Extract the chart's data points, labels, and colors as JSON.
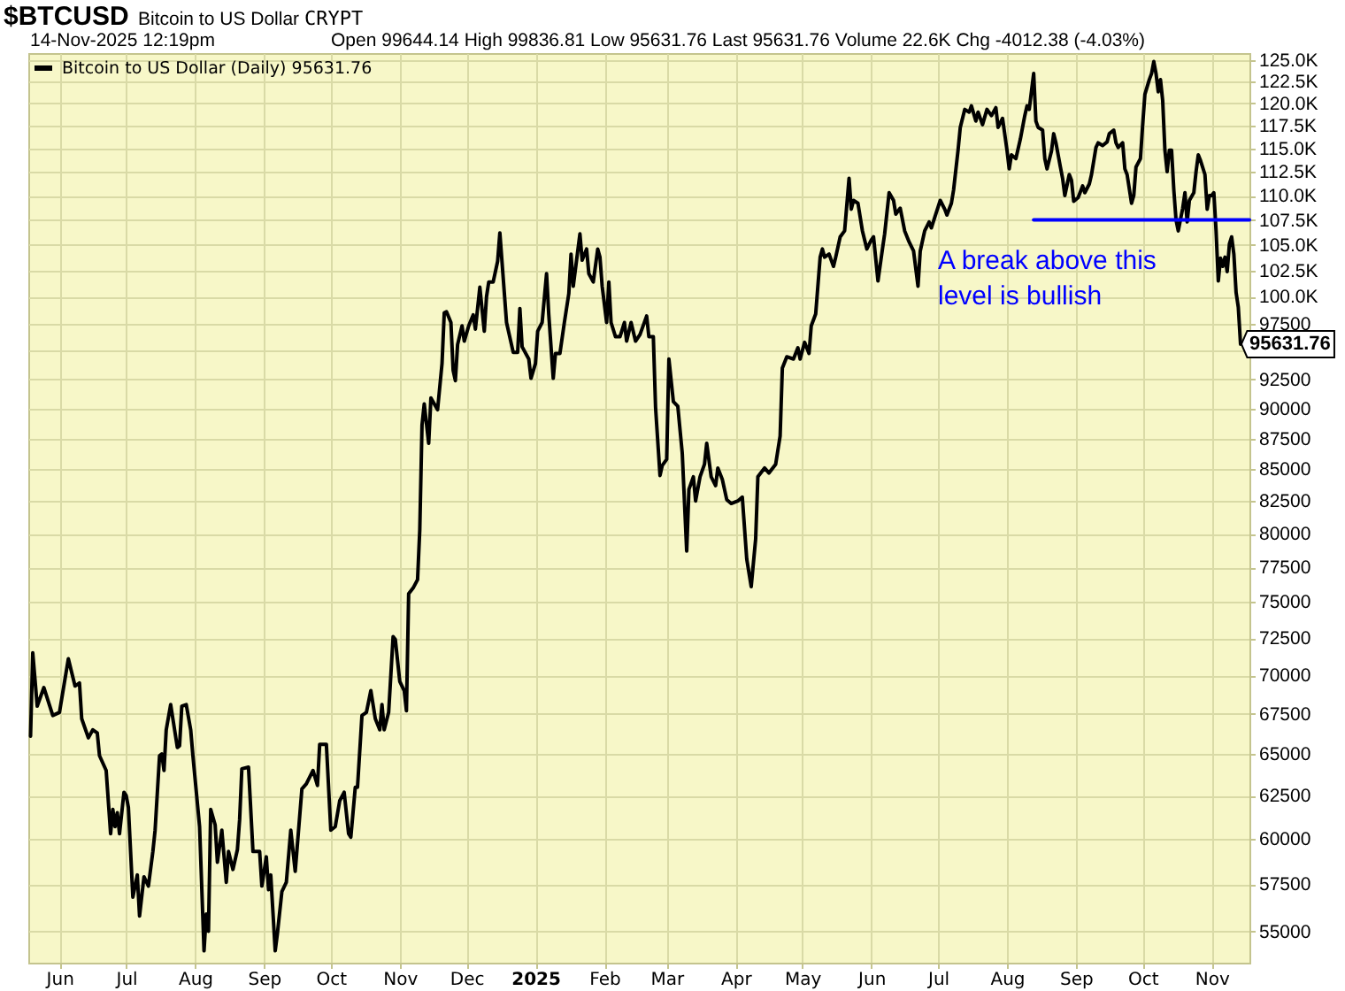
{
  "chart_data": {
    "type": "line",
    "title": "$BTCUSD",
    "subtitle": "Bitcoin to US Dollar",
    "annotations": [
      "CRYPT",
      "14-Nov-2025 12:19pm",
      "Open 99644.14 High 99836.81 Low 95631.76 Last 95631.76 Volume 22.6K Chg -4012.38 (-4.03%)",
      "A break above this level is bullish",
      {
        "text": "95631.76",
        "x": "2025-11-14",
        "y": 95631.76
      }
    ],
    "series": [
      {
        "name": "Bitcoin to US Dollar (Daily) 95631.76",
        "color": "#000000",
        "x": [
          "2024-05-19",
          "2024-05-20",
          "2024-05-22",
          "2024-05-25",
          "2024-05-29",
          "2024-06-01",
          "2024-06-05",
          "2024-06-08",
          "2024-06-10",
          "2024-06-11",
          "2024-06-14",
          "2024-06-16",
          "2024-06-18",
          "2024-06-19",
          "2024-06-22",
          "2024-06-24",
          "2024-06-25",
          "2024-06-26",
          "2024-06-27",
          "2024-06-28",
          "2024-06-30",
          "2024-07-01",
          "2024-07-02",
          "2024-07-04",
          "2024-07-06",
          "2024-07-07",
          "2024-07-09",
          "2024-07-11",
          "2024-07-13",
          "2024-07-14",
          "2024-07-16",
          "2024-07-17",
          "2024-07-18",
          "2024-07-19",
          "2024-07-21",
          "2024-07-24",
          "2024-07-25",
          "2024-07-26",
          "2024-07-28",
          "2024-07-30",
          "2024-07-31",
          "2024-08-03",
          "2024-08-05",
          "2024-08-06",
          "2024-08-07",
          "2024-08-08",
          "2024-08-10",
          "2024-08-11",
          "2024-08-13",
          "2024-08-15",
          "2024-08-16",
          "2024-08-18",
          "2024-08-20",
          "2024-08-21",
          "2024-08-22",
          "2024-08-25",
          "2024-08-27",
          "2024-08-30",
          "2024-08-31",
          "2024-09-02",
          "2024-09-03",
          "2024-09-04",
          "2024-09-06",
          "2024-09-07",
          "2024-09-09",
          "2024-09-11",
          "2024-09-13",
          "2024-09-15",
          "2024-09-18",
          "2024-09-20",
          "2024-09-23",
          "2024-09-25",
          "2024-09-26",
          "2024-09-29",
          "2024-10-01",
          "2024-10-03",
          "2024-10-05",
          "2024-10-07",
          "2024-10-09",
          "2024-10-10",
          "2024-10-12",
          "2024-10-13",
          "2024-10-15",
          "2024-10-17",
          "2024-10-19",
          "2024-10-21",
          "2024-10-23",
          "2024-10-24",
          "2024-10-25",
          "2024-10-27",
          "2024-10-29",
          "2024-10-30",
          "2024-11-01",
          "2024-11-03",
          "2024-11-04",
          "2024-11-05",
          "2024-11-07",
          "2024-11-09",
          "2024-11-10",
          "2024-11-11",
          "2024-11-12",
          "2024-11-14",
          "2024-11-15",
          "2024-11-18",
          "2024-11-20",
          "2024-11-21",
          "2024-11-22",
          "2024-11-24",
          "2024-11-25",
          "2024-11-26",
          "2024-11-27",
          "2024-11-29",
          "2024-11-30",
          "2024-12-02",
          "2024-12-04",
          "2024-12-05",
          "2024-12-07",
          "2024-12-09",
          "2024-12-10",
          "2024-12-11",
          "2024-12-13",
          "2024-12-15",
          "2024-12-16",
          "2024-12-19",
          "2024-12-22",
          "2024-12-24",
          "2024-12-25",
          "2024-12-26",
          "2024-12-29",
          "2024-12-30",
          "2025-01-01",
          "2025-01-02",
          "2025-01-04",
          "2025-01-06",
          "2025-01-07",
          "2025-01-09",
          "2025-01-10",
          "2025-01-12",
          "2025-01-14",
          "2025-01-16",
          "2025-01-17",
          "2025-01-18",
          "2025-01-21",
          "2025-01-22",
          "2025-01-24",
          "2025-01-25",
          "2025-01-27",
          "2025-01-29",
          "2025-01-30",
          "2025-01-31",
          "2025-02-02",
          "2025-02-03",
          "2025-02-04",
          "2025-02-06",
          "2025-02-08",
          "2025-02-10",
          "2025-02-11",
          "2025-02-13",
          "2025-02-15",
          "2025-02-17",
          "2025-02-20",
          "2025-02-21",
          "2025-02-23",
          "2025-02-24",
          "2025-02-26",
          "2025-02-27",
          "2025-03-01",
          "2025-03-02",
          "2025-03-04",
          "2025-03-06",
          "2025-03-08",
          "2025-03-10",
          "2025-03-11",
          "2025-03-13",
          "2025-03-14",
          "2025-03-16",
          "2025-03-18",
          "2025-03-19",
          "2025-03-21",
          "2025-03-23",
          "2025-03-24",
          "2025-03-26",
          "2025-03-28",
          "2025-03-30",
          "2025-04-02",
          "2025-04-04",
          "2025-04-06",
          "2025-04-08",
          "2025-04-10",
          "2025-04-11",
          "2025-04-14",
          "2025-04-16",
          "2025-04-19",
          "2025-04-21",
          "2025-04-22",
          "2025-04-24",
          "2025-04-27",
          "2025-04-29",
          "2025-04-30",
          "2025-05-02",
          "2025-05-04",
          "2025-05-05",
          "2025-05-07",
          "2025-05-09",
          "2025-05-10",
          "2025-05-11",
          "2025-05-13",
          "2025-05-15",
          "2025-05-16",
          "2025-05-18",
          "2025-05-20",
          "2025-05-22",
          "2025-05-23",
          "2025-05-24",
          "2025-05-26",
          "2025-05-28",
          "2025-05-30",
          "2025-06-01",
          "2025-06-02",
          "2025-06-04",
          "2025-06-06",
          "2025-06-07",
          "2025-06-09",
          "2025-06-11",
          "2025-06-12",
          "2025-06-14",
          "2025-06-16",
          "2025-06-18",
          "2025-06-20",
          "2025-06-22",
          "2025-06-23",
          "2025-06-25",
          "2025-06-27",
          "2025-06-28",
          "2025-06-30",
          "2025-07-02",
          "2025-07-04",
          "2025-07-05",
          "2025-07-07",
          "2025-07-08",
          "2025-07-10",
          "2025-07-11",
          "2025-07-13",
          "2025-07-15",
          "2025-07-16",
          "2025-07-18",
          "2025-07-19",
          "2025-07-21",
          "2025-07-23",
          "2025-07-25",
          "2025-07-27",
          "2025-07-28",
          "2025-07-30",
          "2025-08-01",
          "2025-08-02",
          "2025-08-03",
          "2025-08-05",
          "2025-08-07",
          "2025-08-09",
          "2025-08-10",
          "2025-08-11",
          "2025-08-13",
          "2025-08-14",
          "2025-08-15",
          "2025-08-17",
          "2025-08-18",
          "2025-08-19",
          "2025-08-21",
          "2025-08-22",
          "2025-08-23",
          "2025-08-25",
          "2025-08-26",
          "2025-08-27",
          "2025-08-29",
          "2025-08-30",
          "2025-08-31",
          "2025-09-02",
          "2025-09-04",
          "2025-09-05",
          "2025-09-07",
          "2025-09-08",
          "2025-09-10",
          "2025-09-11",
          "2025-09-13",
          "2025-09-15",
          "2025-09-16",
          "2025-09-18",
          "2025-09-19",
          "2025-09-20",
          "2025-09-22",
          "2025-09-23",
          "2025-09-24",
          "2025-09-26",
          "2025-09-27",
          "2025-09-28",
          "2025-09-30",
          "2025-10-01",
          "2025-10-02",
          "2025-10-04",
          "2025-10-05",
          "2025-10-06",
          "2025-10-07",
          "2025-10-08",
          "2025-10-09",
          "2025-10-10",
          "2025-10-11",
          "2025-10-12",
          "2025-10-13",
          "2025-10-14",
          "2025-10-15",
          "2025-10-16",
          "2025-10-17",
          "2025-10-19",
          "2025-10-20",
          "2025-10-21",
          "2025-10-22",
          "2025-10-24",
          "2025-10-25",
          "2025-10-26",
          "2025-10-27",
          "2025-10-29",
          "2025-10-30",
          "2025-10-31",
          "2025-11-01",
          "2025-11-02",
          "2025-11-03",
          "2025-11-04",
          "2025-11-05",
          "2025-11-06",
          "2025-11-07",
          "2025-11-08",
          "2025-11-09",
          "2025-11-10",
          "2025-11-11",
          "2025-11-12",
          "2025-11-13",
          "2025-11-14"
        ],
        "values": [
          66100,
          71500,
          68000,
          69200,
          67400,
          67600,
          71100,
          69300,
          69500,
          67200,
          66000,
          66500,
          66300,
          64900,
          64000,
          60300,
          61700,
          60700,
          61500,
          60300,
          62700,
          62500,
          61800,
          56800,
          58000,
          55800,
          57900,
          57400,
          59300,
          60500,
          64900,
          65000,
          64000,
          66500,
          68100,
          65400,
          65500,
          68000,
          68100,
          66500,
          64900,
          60700,
          54000,
          55900,
          55000,
          61700,
          60800,
          58700,
          60500,
          57600,
          59300,
          58300,
          59400,
          61100,
          64100,
          64200,
          59300,
          59300,
          57400,
          59000,
          57200,
          58000,
          54000,
          54900,
          57100,
          57600,
          60500,
          58200,
          62900,
          63200,
          64000,
          63100,
          65600,
          65600,
          60500,
          60700,
          62200,
          62700,
          60300,
          60100,
          63000,
          63000,
          67400,
          67600,
          69000,
          67200,
          66500,
          68100,
          66500,
          67600,
          72600,
          72400,
          69600,
          69000,
          67700,
          75600,
          76000,
          76600,
          80300,
          88600,
          90400,
          87100,
          90900,
          89900,
          93900,
          98500,
          98600,
          97600,
          93300,
          92400,
          95600,
          97300,
          95900,
          97300,
          98300,
          97000,
          100900,
          96800,
          100000,
          101400,
          101400,
          103400,
          106200,
          97600,
          94900,
          94900,
          98900,
          95400,
          94300,
          92600,
          93900,
          96800,
          97600,
          102200,
          98300,
          92600,
          94800,
          94800,
          97600,
          100300,
          104100,
          101000,
          106100,
          103500,
          104600,
          102200,
          101400,
          104600,
          103800,
          101000,
          97600,
          101400,
          97600,
          96300,
          96300,
          97600,
          95900,
          97600,
          95900,
          96500,
          98200,
          96300,
          96300,
          90100,
          84500,
          85300,
          85800,
          94300,
          90600,
          90200,
          86300,
          78700,
          83400,
          84400,
          82500,
          84400,
          85400,
          87100,
          84400,
          83700,
          85100,
          84200,
          82600,
          82300,
          82500,
          82800,
          78100,
          76100,
          79600,
          84400,
          85100,
          84700,
          85400,
          87700,
          93500,
          94500,
          94300,
          95300,
          94300,
          95800,
          94800,
          97300,
          98400,
          103800,
          104600,
          103800,
          104100,
          102900,
          103800,
          105800,
          106400,
          111800,
          108600,
          109500,
          109200,
          106400,
          104600,
          105500,
          105800,
          101500,
          104600,
          106100,
          110300,
          109500,
          108100,
          108700,
          106400,
          105300,
          104400,
          101000,
          104400,
          106400,
          107300,
          106700,
          108100,
          109500,
          108600,
          108000,
          109200,
          110600,
          114800,
          117300,
          119300,
          119000,
          119700,
          118000,
          119000,
          117600,
          119300,
          118600,
          119500,
          117300,
          118300,
          114800,
          112800,
          114300,
          113900,
          116000,
          118600,
          119700,
          119300,
          123400,
          118000,
          117300,
          117000,
          113900,
          112800,
          114700,
          116600,
          115600,
          113000,
          111800,
          110000,
          112200,
          111600,
          109400,
          109800,
          111000,
          110300,
          111200,
          112200,
          115100,
          115600,
          115300,
          115700,
          116600,
          117000,
          115600,
          115100,
          115600,
          112800,
          112200,
          109200,
          110000,
          113000,
          113900,
          117600,
          121000,
          122700,
          123400,
          124800,
          123400,
          121300,
          122700,
          120300,
          114800,
          112500,
          114800,
          114800,
          110600,
          107500,
          106400,
          108700,
          110300,
          107300,
          109500,
          110300,
          112500,
          114300,
          113700,
          112200,
          108600,
          110000,
          110000,
          110300,
          106400,
          101500,
          103700,
          102900,
          103800,
          102400,
          105100,
          105800,
          104100,
          100400,
          99000,
          95631.76
        ]
      },
      {
        "type": "line",
        "color": "#0000ff",
        "x": [
          "2025-08-13",
          "2025-11-18"
        ],
        "values": [
          107500,
          107500
        ]
      }
    ],
    "xlim": [
      "2024-05-18",
      "2025-11-18"
    ],
    "xticks": [
      {
        "value": "2024-06-01",
        "label": "Jun"
      },
      {
        "value": "2024-07-01",
        "label": "Jul"
      },
      {
        "value": "2024-08-01",
        "label": "Aug"
      },
      {
        "value": "2024-09-01",
        "label": "Sep"
      },
      {
        "value": "2024-10-01",
        "label": "Oct"
      },
      {
        "value": "2024-11-01",
        "label": "Nov"
      },
      {
        "value": "2024-12-01",
        "label": "Dec"
      },
      {
        "value": "2025-01-01",
        "label": "2025"
      },
      {
        "value": "2025-02-01",
        "label": "Feb"
      },
      {
        "value": "2025-03-01",
        "label": "Mar"
      },
      {
        "value": "2025-04-01",
        "label": "Apr"
      },
      {
        "value": "2025-05-01",
        "label": "May"
      },
      {
        "value": "2025-06-01",
        "label": "Jun"
      },
      {
        "value": "2025-07-01",
        "label": "Jul"
      },
      {
        "value": "2025-08-01",
        "label": "Aug"
      },
      {
        "value": "2025-09-01",
        "label": "Sep"
      },
      {
        "value": "2025-10-01",
        "label": "Oct"
      },
      {
        "value": "2025-11-01",
        "label": "Nov"
      }
    ],
    "ylim": [
      53400,
      125800
    ],
    "yticks": [
      {
        "value": 55000,
        "label": "55000"
      },
      {
        "value": 57500,
        "label": "57500"
      },
      {
        "value": 60000,
        "label": "60000"
      },
      {
        "value": 62500,
        "label": "62500"
      },
      {
        "value": 65000,
        "label": "65000"
      },
      {
        "value": 67500,
        "label": "67500"
      },
      {
        "value": 70000,
        "label": "70000"
      },
      {
        "value": 72500,
        "label": "72500"
      },
      {
        "value": 75000,
        "label": "75000"
      },
      {
        "value": 77500,
        "label": "77500"
      },
      {
        "value": 80000,
        "label": "80000"
      },
      {
        "value": 82500,
        "label": "82500"
      },
      {
        "value": 85000,
        "label": "85000"
      },
      {
        "value": 87500,
        "label": "87500"
      },
      {
        "value": 90000,
        "label": "90000"
      },
      {
        "value": 92500,
        "label": "92500"
      },
      {
        "value": 95000,
        "label": null
      },
      {
        "value": 97500,
        "label": "97500"
      },
      {
        "value": 100000,
        "label": "100.0K"
      },
      {
        "value": 102500,
        "label": "102.5K"
      },
      {
        "value": 105000,
        "label": "105.0K"
      },
      {
        "value": 107500,
        "label": "107.5K"
      },
      {
        "value": 110000,
        "label": "110.0K"
      },
      {
        "value": 112500,
        "label": "112.5K"
      },
      {
        "value": 115000,
        "label": "115.0K"
      },
      {
        "value": 117500,
        "label": "117.5K"
      },
      {
        "value": 120000,
        "label": "120.0K"
      },
      {
        "value": 122500,
        "label": "122.5K"
      },
      {
        "value": 125000,
        "label": "125.0K"
      }
    ],
    "log": true,
    "grid": true,
    "legend": "top left"
  }
}
